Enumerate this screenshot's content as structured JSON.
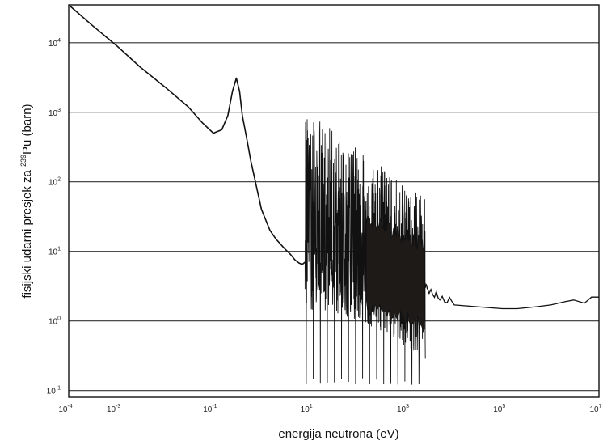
{
  "chart_data": {
    "type": "line",
    "title": "",
    "xlabel": "energija neutrona (eV)",
    "ylabel_prefix": "fisijski udarni presjek za ",
    "ylabel_isotope_mass": "239",
    "ylabel_isotope_symbol": "Pu",
    "ylabel_suffix": " (barn)",
    "x_scale": "log",
    "y_scale": "log",
    "xlim": [
      0.0001,
      10000000
    ],
    "ylim": [
      0.08,
      35000
    ],
    "grid": "horizontal",
    "x_ticks": [
      {
        "base": "10",
        "exp": "-4"
      },
      {
        "base": "10",
        "exp": "-3"
      },
      {
        "base": "10",
        "exp": "-1"
      },
      {
        "base": "10",
        "exp": "1"
      },
      {
        "base": "10",
        "exp": "3"
      },
      {
        "base": "10",
        "exp": "5"
      },
      {
        "base": "10",
        "exp": "7"
      }
    ],
    "y_ticks": [
      {
        "base": "10",
        "exp": "-1"
      },
      {
        "base": "10",
        "exp": "0"
      },
      {
        "base": "10",
        "exp": "1"
      },
      {
        "base": "10",
        "exp": "2"
      },
      {
        "base": "10",
        "exp": "3"
      },
      {
        "base": "10",
        "exp": "4"
      }
    ],
    "series": [
      {
        "x": [
          0.0001,
          0.0003,
          0.001,
          0.003,
          0.01,
          0.03,
          0.06,
          0.1,
          0.15,
          0.2,
          0.25,
          0.3,
          0.35,
          0.4,
          0.5,
          0.6,
          0.8,
          1.0,
          1.5,
          2.0,
          3.0,
          4.0,
          5.0,
          6.0,
          7.0,
          8.0
        ],
        "y": [
          35000,
          18000,
          9000,
          4500,
          2300,
          1200,
          700,
          500,
          560,
          900,
          2000,
          3100,
          2000,
          900,
          400,
          200,
          80,
          40,
          20,
          15,
          11,
          9,
          7.5,
          6.8,
          6.5,
          7.0
        ]
      }
    ],
    "resonance_region": {
      "x_start": 8,
      "x_end": 2500,
      "y_min": 0.12,
      "y_max": 1200
    },
    "tail": {
      "x": [
        2500,
        3000,
        5000,
        10000,
        30000,
        100000,
        200000,
        500000,
        1000000,
        2000000,
        3000000,
        5000000,
        7000000,
        10000000
      ],
      "y": [
        3.0,
        2.5,
        2.0,
        1.7,
        1.6,
        1.5,
        1.5,
        1.6,
        1.7,
        1.9,
        2.0,
        1.8,
        2.2,
        2.2
      ]
    }
  }
}
